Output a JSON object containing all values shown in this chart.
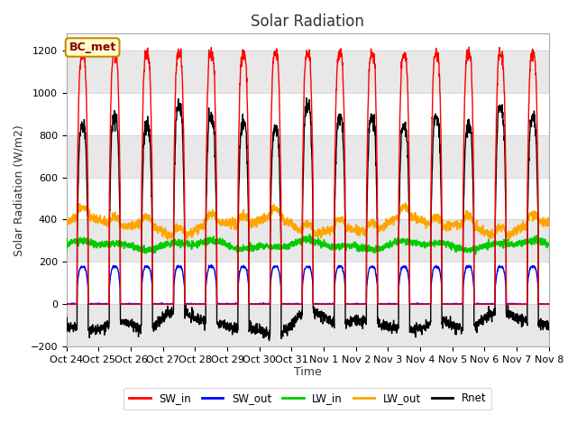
{
  "title": "Solar Radiation",
  "ylabel": "Solar Radiation (W/m2)",
  "xlabel": "Time",
  "ylim": [
    -200,
    1280
  ],
  "yticks": [
    -200,
    0,
    200,
    400,
    600,
    800,
    1000,
    1200
  ],
  "x_tick_labels": [
    "Oct 24",
    "Oct 25",
    "Oct 26",
    "Oct 27",
    "Oct 28",
    "Oct 29",
    "Oct 30",
    "Oct 31",
    "Nov 1",
    "Nov 2",
    "Nov 3",
    "Nov 4",
    "Nov 5",
    "Nov 6",
    "Nov 7",
    "Nov 8"
  ],
  "colors": {
    "SW_in": "#ff0000",
    "SW_out": "#0000ff",
    "LW_in": "#00cc00",
    "LW_out": "#ffa500",
    "Rnet": "#000000"
  },
  "legend_label": "BC_met",
  "legend_bg": "#ffffcc",
  "legend_border": "#cc8800",
  "background_color": "#ffffff",
  "stripe_color": "#e8e8e8",
  "num_days": 15,
  "points_per_day": 144,
  "SW_in_peak": 1180,
  "LW_in_mean": 280,
  "LW_out_mean": 370,
  "title_fontsize": 12,
  "label_fontsize": 9,
  "tick_fontsize": 8
}
